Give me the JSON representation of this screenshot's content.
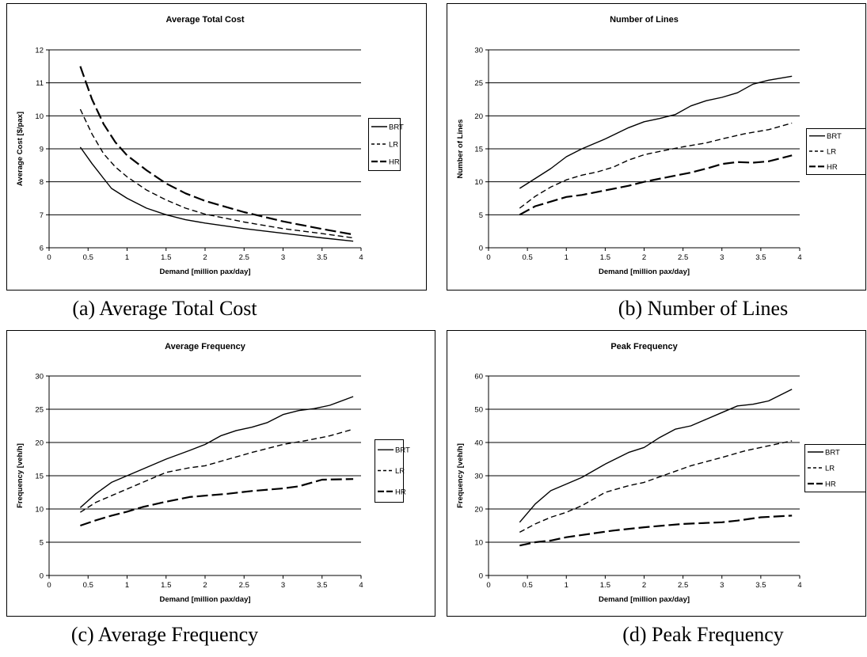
{
  "chart_data": [
    {
      "type": "line",
      "title": "Average Total Cost",
      "xlabel": "Demand [million pax/day]",
      "ylabel": "Average Cost [$/pax]",
      "xlim": [
        0,
        4
      ],
      "ylim": [
        6,
        12
      ],
      "xticks": [
        "0",
        "0.5",
        "1",
        "1.5",
        "2",
        "2.5",
        "3",
        "3.5",
        "4"
      ],
      "yticks": [
        "6",
        "7",
        "8",
        "9",
        "10",
        "11",
        "12"
      ],
      "grid": "horizontal",
      "legend": "right",
      "caption": "(a) Average Total Cost",
      "series": [
        {
          "name": "BRT",
          "style": "solid",
          "x": [
            0.4,
            0.55,
            0.7,
            0.8,
            1.0,
            1.25,
            1.5,
            1.75,
            2.0,
            2.5,
            3.0,
            3.5,
            3.9
          ],
          "y": [
            9.05,
            8.55,
            8.1,
            7.8,
            7.5,
            7.2,
            7.0,
            6.85,
            6.75,
            6.58,
            6.44,
            6.3,
            6.2
          ]
        },
        {
          "name": "LR",
          "style": "dashed",
          "x": [
            0.4,
            0.55,
            0.7,
            0.85,
            1.0,
            1.25,
            1.5,
            1.75,
            2.0,
            2.5,
            3.0,
            3.5,
            3.9
          ],
          "y": [
            10.2,
            9.45,
            8.85,
            8.45,
            8.15,
            7.75,
            7.45,
            7.2,
            7.02,
            6.78,
            6.58,
            6.43,
            6.3
          ]
        },
        {
          "name": "HR",
          "style": "long-dash",
          "x": [
            0.4,
            0.55,
            0.7,
            0.85,
            1.0,
            1.25,
            1.5,
            1.75,
            2.0,
            2.5,
            3.0,
            3.5,
            3.9
          ],
          "y": [
            11.5,
            10.5,
            9.75,
            9.2,
            8.8,
            8.35,
            7.95,
            7.65,
            7.42,
            7.08,
            6.8,
            6.57,
            6.4
          ]
        }
      ]
    },
    {
      "type": "line",
      "title": "Number of Lines",
      "xlabel": "Demand [million pax/day]",
      "ylabel": "Number of Lines",
      "xlim": [
        0,
        4
      ],
      "ylim": [
        0,
        30
      ],
      "xticks": [
        "0",
        "0.5",
        "1",
        "1.5",
        "2",
        "2.5",
        "3",
        "3.5",
        "4"
      ],
      "yticks": [
        "0",
        "5",
        "10",
        "15",
        "20",
        "25",
        "30"
      ],
      "grid": "horizontal",
      "legend": "right",
      "caption": "(b) Number of Lines",
      "series": [
        {
          "name": "BRT",
          "style": "solid",
          "x": [
            0.4,
            0.6,
            0.8,
            1.0,
            1.2,
            1.5,
            1.8,
            2.0,
            2.2,
            2.4,
            2.6,
            2.8,
            3.0,
            3.2,
            3.4,
            3.6,
            3.9
          ],
          "y": [
            9.0,
            10.5,
            12.0,
            13.8,
            15.0,
            16.5,
            18.2,
            19.1,
            19.6,
            20.2,
            21.5,
            22.3,
            22.8,
            23.5,
            24.8,
            25.4,
            26.0
          ]
        },
        {
          "name": "LR",
          "style": "dashed",
          "x": [
            0.4,
            0.6,
            0.8,
            1.0,
            1.2,
            1.4,
            1.6,
            1.8,
            2.0,
            2.2,
            2.5,
            2.8,
            3.0,
            3.3,
            3.6,
            3.9
          ],
          "y": [
            6.0,
            7.8,
            9.2,
            10.3,
            11.0,
            11.5,
            12.2,
            13.3,
            14.1,
            14.6,
            15.3,
            15.9,
            16.5,
            17.3,
            17.9,
            18.9
          ]
        },
        {
          "name": "HR",
          "style": "long-dash",
          "x": [
            0.4,
            0.6,
            0.8,
            1.0,
            1.2,
            1.5,
            1.8,
            2.0,
            2.3,
            2.6,
            2.8,
            3.0,
            3.2,
            3.4,
            3.6,
            3.9
          ],
          "y": [
            5.0,
            6.3,
            7.0,
            7.7,
            8.0,
            8.7,
            9.4,
            10.0,
            10.7,
            11.4,
            12.0,
            12.7,
            13.0,
            12.9,
            13.1,
            14.0
          ]
        }
      ]
    },
    {
      "type": "line",
      "title": "Average Frequency",
      "xlabel": "Demand [million pax/day]",
      "ylabel": "Frequency [veh/h]",
      "xlim": [
        0,
        4
      ],
      "ylim": [
        0,
        30
      ],
      "xticks": [
        "0",
        "0.5",
        "1",
        "1.5",
        "2",
        "2.5",
        "3",
        "3.5",
        "4"
      ],
      "yticks": [
        "0",
        "5",
        "10",
        "15",
        "20",
        "25",
        "30"
      ],
      "grid": "horizontal",
      "legend": "right",
      "caption": "(c) Average Frequency",
      "series": [
        {
          "name": "BRT",
          "style": "solid",
          "x": [
            0.4,
            0.6,
            0.8,
            1.0,
            1.2,
            1.5,
            1.8,
            2.0,
            2.2,
            2.4,
            2.6,
            2.8,
            3.0,
            3.2,
            3.4,
            3.6,
            3.9
          ],
          "y": [
            10.2,
            12.3,
            14.0,
            15.0,
            16.0,
            17.5,
            18.8,
            19.7,
            21.0,
            21.8,
            22.3,
            23.0,
            24.2,
            24.8,
            25.1,
            25.6,
            26.9
          ]
        },
        {
          "name": "LR",
          "style": "dashed",
          "x": [
            0.4,
            0.6,
            0.8,
            1.0,
            1.2,
            1.5,
            1.8,
            2.0,
            2.3,
            2.6,
            3.0,
            3.3,
            3.6,
            3.9
          ],
          "y": [
            9.5,
            11.0,
            12.0,
            13.0,
            14.0,
            15.5,
            16.2,
            16.5,
            17.5,
            18.5,
            19.7,
            20.3,
            21.0,
            22.0
          ]
        },
        {
          "name": "HR",
          "style": "long-dash",
          "x": [
            0.4,
            0.6,
            0.8,
            1.0,
            1.2,
            1.5,
            1.8,
            2.0,
            2.3,
            2.6,
            3.0,
            3.2,
            3.5,
            3.9
          ],
          "y": [
            7.5,
            8.3,
            9.0,
            9.6,
            10.3,
            11.1,
            11.8,
            12.0,
            12.3,
            12.7,
            13.1,
            13.4,
            14.4,
            14.5
          ]
        }
      ]
    },
    {
      "type": "line",
      "title": "Peak Frequency",
      "xlabel": "Demand [million pax/day]",
      "ylabel": "Frequency [veh/h]",
      "xlim": [
        0,
        4
      ],
      "ylim": [
        0,
        60
      ],
      "xticks": [
        "0",
        "0.5",
        "1",
        "1.5",
        "2",
        "2.5",
        "3",
        "3.5",
        "4"
      ],
      "yticks": [
        "0",
        "10",
        "20",
        "30",
        "40",
        "50",
        "60"
      ],
      "grid": "horizontal",
      "legend": "right",
      "caption": "(d) Peak Frequency",
      "series": [
        {
          "name": "BRT",
          "style": "solid",
          "x": [
            0.4,
            0.6,
            0.8,
            1.0,
            1.2,
            1.5,
            1.8,
            2.0,
            2.2,
            2.4,
            2.6,
            2.8,
            3.0,
            3.2,
            3.4,
            3.6,
            3.9
          ],
          "y": [
            16.0,
            21.5,
            25.5,
            27.5,
            29.5,
            33.5,
            37.0,
            38.5,
            41.5,
            44.0,
            45.0,
            47.0,
            49.0,
            51.0,
            51.5,
            52.5,
            56.0
          ]
        },
        {
          "name": "LR",
          "style": "dashed",
          "x": [
            0.4,
            0.6,
            0.8,
            1.0,
            1.2,
            1.5,
            1.8,
            2.0,
            2.3,
            2.6,
            3.0,
            3.3,
            3.6,
            3.9
          ],
          "y": [
            13.0,
            15.5,
            17.5,
            19.0,
            21.0,
            25.0,
            27.0,
            28.0,
            30.5,
            33.0,
            35.5,
            37.5,
            39.0,
            40.5
          ]
        },
        {
          "name": "HR",
          "style": "long-dash",
          "x": [
            0.4,
            0.6,
            0.8,
            1.0,
            1.3,
            1.6,
            2.0,
            2.5,
            3.0,
            3.2,
            3.5,
            3.9
          ],
          "y": [
            9.0,
            10.0,
            10.5,
            11.5,
            12.5,
            13.5,
            14.5,
            15.5,
            16.0,
            16.5,
            17.5,
            18.0
          ]
        }
      ]
    }
  ]
}
